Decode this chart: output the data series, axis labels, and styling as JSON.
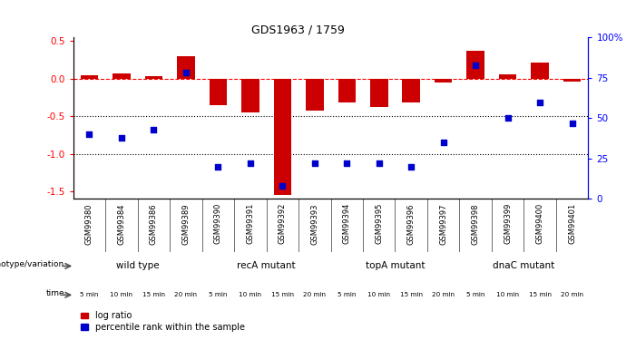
{
  "title": "GDS1963 / 1759",
  "samples": [
    "GSM99380",
    "GSM99384",
    "GSM99386",
    "GSM99389",
    "GSM99390",
    "GSM99391",
    "GSM99392",
    "GSM99393",
    "GSM99394",
    "GSM99395",
    "GSM99396",
    "GSM99397",
    "GSM99398",
    "GSM99399",
    "GSM99400",
    "GSM99401"
  ],
  "log_ratio": [
    0.05,
    0.07,
    0.04,
    0.3,
    -0.35,
    -0.45,
    -1.55,
    -0.42,
    -0.32,
    -0.38,
    -0.32,
    -0.05,
    0.37,
    0.06,
    0.22,
    -0.04
  ],
  "percentile_rank": [
    40,
    38,
    43,
    78,
    20,
    22,
    8,
    22,
    22,
    22,
    20,
    35,
    83,
    50,
    60,
    47
  ],
  "ylim_left": [
    -1.6,
    0.55
  ],
  "ylim_right": [
    0,
    100
  ],
  "yticks_left": [
    -1.5,
    -1.0,
    -0.5,
    0.0,
    0.5
  ],
  "yticks_right": [
    0,
    25,
    50,
    75,
    100
  ],
  "hline_y": 0.0,
  "dotted_lines": [
    -0.5,
    -1.0
  ],
  "bar_color": "#cc0000",
  "dot_color": "#0000cc",
  "groups": [
    {
      "label": "wild type",
      "start": 0,
      "end": 4,
      "bg_color": "#ccffcc"
    },
    {
      "label": "recA mutant",
      "start": 4,
      "end": 8,
      "bg_color": "#66dd66"
    },
    {
      "label": "topA mutant",
      "start": 8,
      "end": 12,
      "bg_color": "#66dd66"
    },
    {
      "label": "dnaC mutant",
      "start": 12,
      "end": 16,
      "bg_color": "#44cc44"
    }
  ],
  "time_labels": [
    "5 min",
    "10 min",
    "15 min",
    "20 min",
    "5 min",
    "10 min",
    "15 min",
    "20 min",
    "5 min",
    "10 min",
    "15 min",
    "20 min",
    "5 min",
    "10 min",
    "15 min",
    "20 min"
  ],
  "time_bg_colors": [
    "#ee88ee",
    "#ffbbff",
    "#ee88ee",
    "#cc44cc",
    "#ee88ee",
    "#ffbbff",
    "#ee88ee",
    "#cc44cc",
    "#ee88ee",
    "#ffbbff",
    "#ee88ee",
    "#cc44cc",
    "#ee88ee",
    "#ffbbff",
    "#ee88ee",
    "#cc44cc"
  ],
  "sample_header_bg": "#cccccc",
  "legend_items": [
    {
      "label": "log ratio",
      "color": "#cc0000"
    },
    {
      "label": "percentile rank within the sample",
      "color": "#0000cc"
    }
  ]
}
